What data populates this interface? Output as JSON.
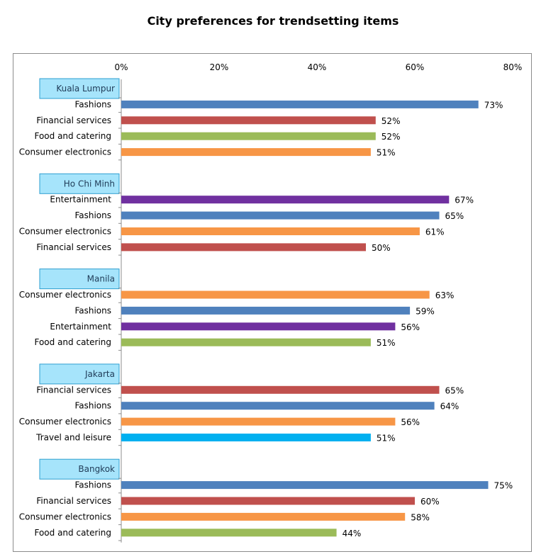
{
  "chart_data": {
    "type": "bar",
    "orientation": "horizontal",
    "title": "City preferences for trendsetting items",
    "xlabel": "",
    "ylabel": "",
    "xlim": [
      0,
      80
    ],
    "x_ticks": [
      "0%",
      "20%",
      "40%",
      "60%",
      "80%"
    ],
    "x_tick_values": [
      0,
      20,
      40,
      60,
      80
    ],
    "grid": false,
    "legend": "none",
    "colors": {
      "Fashions": "#4f81bd",
      "Financial services": "#c0504d",
      "Food and catering": "#9bbb59",
      "Consumer electronics": "#f79646",
      "Entertainment": "#7030a0",
      "Travel and leisure": "#00b0f0",
      "group_box_fill": "#a6e4fb",
      "group_box_border": "#2e9fd0"
    },
    "groups": [
      {
        "city": "Kuala Lumpur",
        "items": [
          {
            "label": "Fashions",
            "value": 73,
            "value_label": "73%"
          },
          {
            "label": "Financial services",
            "value": 52,
            "value_label": "52%"
          },
          {
            "label": "Food and catering",
            "value": 52,
            "value_label": "52%"
          },
          {
            "label": "Consumer electronics",
            "value": 51,
            "value_label": "51%"
          }
        ]
      },
      {
        "city": "Ho Chi Minh",
        "items": [
          {
            "label": "Entertainment",
            "value": 67,
            "value_label": "67%"
          },
          {
            "label": "Fashions",
            "value": 65,
            "value_label": "65%"
          },
          {
            "label": "Consumer electronics",
            "value": 61,
            "value_label": "61%"
          },
          {
            "label": "Financial services",
            "value": 50,
            "value_label": "50%"
          }
        ]
      },
      {
        "city": "Manila",
        "items": [
          {
            "label": "Consumer electronics",
            "value": 63,
            "value_label": "63%"
          },
          {
            "label": "Fashions",
            "value": 59,
            "value_label": "59%"
          },
          {
            "label": "Entertainment",
            "value": 56,
            "value_label": "56%"
          },
          {
            "label": "Food and catering",
            "value": 51,
            "value_label": "51%"
          }
        ]
      },
      {
        "city": "Jakarta",
        "items": [
          {
            "label": "Financial services",
            "value": 65,
            "value_label": "65%"
          },
          {
            "label": "Fashions",
            "value": 64,
            "value_label": "64%"
          },
          {
            "label": "Consumer electronics",
            "value": 56,
            "value_label": "56%"
          },
          {
            "label": "Travel and leisure",
            "value": 51,
            "value_label": "51%"
          }
        ]
      },
      {
        "city": "Bangkok",
        "items": [
          {
            "label": "Fashions",
            "value": 75,
            "value_label": "75%"
          },
          {
            "label": "Financial services",
            "value": 60,
            "value_label": "60%"
          },
          {
            "label": "Consumer electronics",
            "value": 58,
            "value_label": "58%"
          },
          {
            "label": "Food and catering",
            "value": 44,
            "value_label": "44%"
          }
        ]
      }
    ]
  }
}
